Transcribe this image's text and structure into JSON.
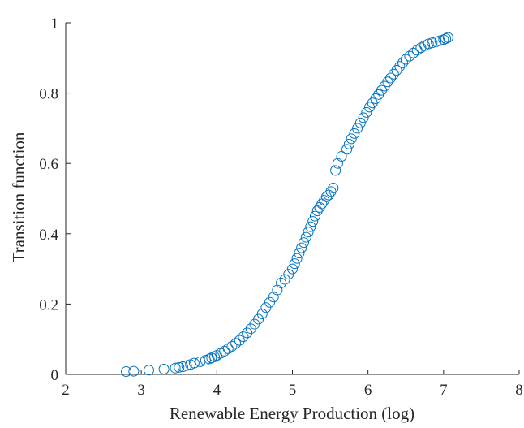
{
  "chart_data": {
    "type": "scatter",
    "title": "",
    "xlabel": "Renewable Energy Production (log)",
    "ylabel": "Transition function",
    "xlim": [
      2,
      8
    ],
    "ylim": [
      0,
      1
    ],
    "xticks": [
      "2",
      "3",
      "4",
      "5",
      "6",
      "7",
      "8"
    ],
    "yticks": [
      "0",
      "0.2",
      "0.4",
      "0.6",
      "0.8",
      "1"
    ],
    "grid": false,
    "marker": "circle-open",
    "color": "#0072BD",
    "series": [
      {
        "x": [
          2.8,
          2.9,
          3.1,
          3.3,
          3.45,
          3.5,
          3.55,
          3.6,
          3.65,
          3.7,
          3.78,
          3.85,
          3.9,
          3.93,
          3.97,
          4.0,
          4.05,
          4.1,
          4.15,
          4.2,
          4.25,
          4.3,
          4.35,
          4.4,
          4.45,
          4.5,
          4.55,
          4.6,
          4.65,
          4.7,
          4.75,
          4.8,
          4.85,
          4.9,
          4.95,
          5.0,
          5.03,
          5.06,
          5.09,
          5.12,
          5.15,
          5.18,
          5.21,
          5.24,
          5.27,
          5.3,
          5.33,
          5.36,
          5.39,
          5.42,
          5.45,
          5.48,
          5.51,
          5.54,
          5.57,
          5.6,
          5.65,
          5.72,
          5.75,
          5.78,
          5.82,
          5.86,
          5.9,
          5.94,
          5.98,
          6.02,
          6.06,
          6.1,
          6.14,
          6.18,
          6.22,
          6.26,
          6.3,
          6.34,
          6.38,
          6.42,
          6.46,
          6.5,
          6.55,
          6.6,
          6.65,
          6.7,
          6.75,
          6.8,
          6.85,
          6.9,
          6.95,
          7.0,
          7.03,
          7.06
        ],
        "y": [
          0.008,
          0.009,
          0.012,
          0.015,
          0.018,
          0.02,
          0.022,
          0.025,
          0.028,
          0.032,
          0.036,
          0.04,
          0.044,
          0.047,
          0.05,
          0.054,
          0.06,
          0.066,
          0.073,
          0.08,
          0.088,
          0.097,
          0.107,
          0.118,
          0.13,
          0.143,
          0.157,
          0.172,
          0.19,
          0.205,
          0.22,
          0.24,
          0.26,
          0.27,
          0.285,
          0.3,
          0.315,
          0.33,
          0.345,
          0.36,
          0.375,
          0.39,
          0.405,
          0.42,
          0.435,
          0.45,
          0.465,
          0.475,
          0.485,
          0.495,
          0.505,
          0.51,
          0.52,
          0.53,
          0.58,
          0.6,
          0.62,
          0.64,
          0.655,
          0.67,
          0.685,
          0.7,
          0.715,
          0.73,
          0.745,
          0.76,
          0.772,
          0.784,
          0.796,
          0.808,
          0.82,
          0.832,
          0.843,
          0.854,
          0.865,
          0.876,
          0.886,
          0.896,
          0.905,
          0.914,
          0.922,
          0.929,
          0.935,
          0.94,
          0.943,
          0.946,
          0.949,
          0.952,
          0.955,
          0.958
        ]
      }
    ]
  }
}
